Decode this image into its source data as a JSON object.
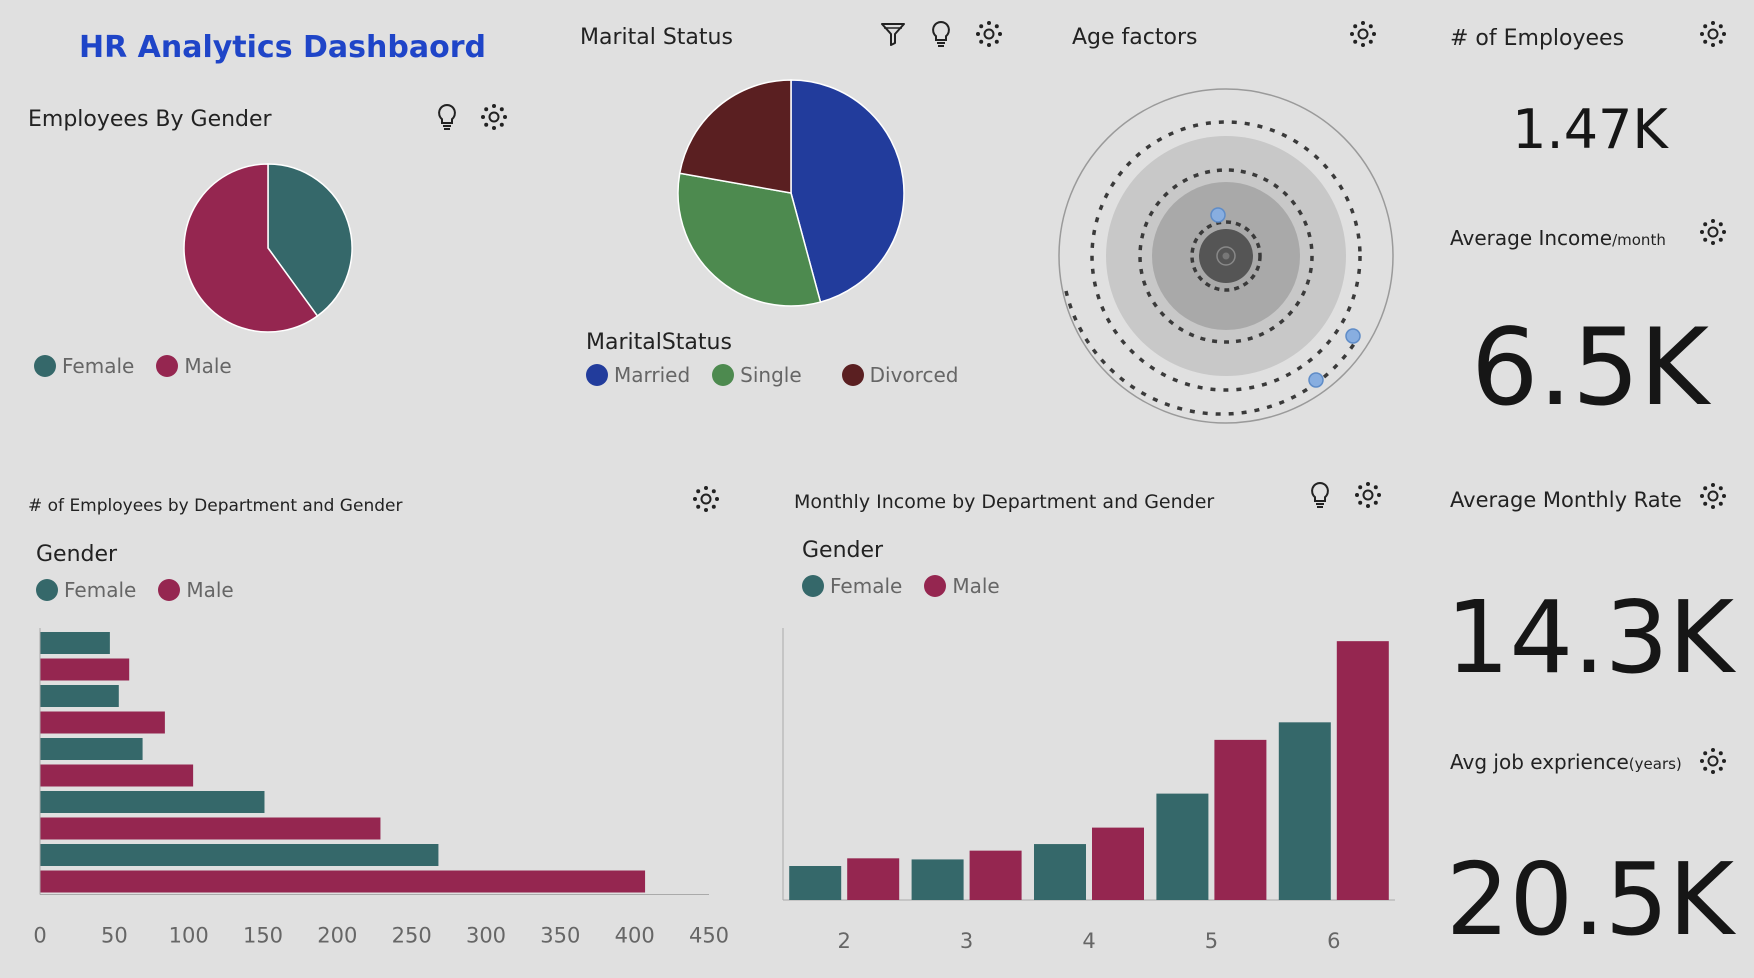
{
  "dashboard": {
    "title": "HR Analytics Dashbaord"
  },
  "colors": {
    "female": "#35686a",
    "male": "#952650",
    "married": "#223c9c",
    "single": "#4d8a4f",
    "divorced": "#5a1f21",
    "title_blue": "#1f45c8"
  },
  "icons": {
    "bulb": "lightbulb-icon",
    "gear": "settings-gear-icon",
    "filter": "filter-icon"
  },
  "gender_pie": {
    "title": "Employees By Gender",
    "legend": [
      "Female",
      "Male"
    ],
    "chart_data": {
      "type": "pie",
      "labels": [
        "Female",
        "Male"
      ],
      "values": [
        40,
        60
      ]
    }
  },
  "marital_pie": {
    "title": "Marital Status",
    "legend_title": "MaritalStatus",
    "legend": [
      "Married",
      "Single",
      "Divorced"
    ],
    "chart_data": {
      "type": "pie",
      "labels": [
        "Married",
        "Single",
        "Divorced"
      ],
      "values": [
        45.8,
        32,
        22.2
      ]
    }
  },
  "age": {
    "title": "Age factors"
  },
  "kpis": {
    "employees": {
      "label": "# of Employees",
      "value": "1.47K"
    },
    "income": {
      "label": "Average Income",
      "label_small": "/month",
      "value": "6.5K"
    },
    "rate": {
      "label": "Average Monthly Rate",
      "value": "14.3K"
    },
    "experience": {
      "label": "Avg job exprience",
      "label_small": "(years)",
      "value": "20.5K"
    }
  },
  "dept_bar": {
    "title": "# of Employees by Department and Gender",
    "legend_title": "Gender",
    "legend": [
      "Female",
      "Male"
    ],
    "chart_data": {
      "type": "bar",
      "orientation": "horizontal",
      "xlim": [
        0,
        450
      ],
      "xticks": [
        "0",
        "50",
        "100",
        "150",
        "200",
        "250",
        "300",
        "350",
        "400",
        "450"
      ],
      "bars": [
        {
          "series": "Female",
          "value": 47
        },
        {
          "series": "Male",
          "value": 60
        },
        {
          "series": "Female",
          "value": 53
        },
        {
          "series": "Male",
          "value": 84
        },
        {
          "series": "Female",
          "value": 69
        },
        {
          "series": "Male",
          "value": 103
        },
        {
          "series": "Female",
          "value": 151
        },
        {
          "series": "Male",
          "value": 229
        },
        {
          "series": "Female",
          "value": 268
        },
        {
          "series": "Male",
          "value": 407
        }
      ]
    }
  },
  "income_bar": {
    "title": "Monthly Income by Department and Gender",
    "legend_title": "Gender",
    "legend": [
      "Female",
      "Male"
    ],
    "chart_data": {
      "type": "bar",
      "categories": [
        "2",
        "3",
        "4",
        "5",
        "6"
      ],
      "series": [
        {
          "name": "Female",
          "values": [
            31,
            37,
            51,
            97,
            162
          ]
        },
        {
          "name": "Male",
          "values": [
            38,
            45,
            66,
            146,
            236
          ]
        }
      ],
      "ylim": [
        0,
        248
      ]
    }
  }
}
